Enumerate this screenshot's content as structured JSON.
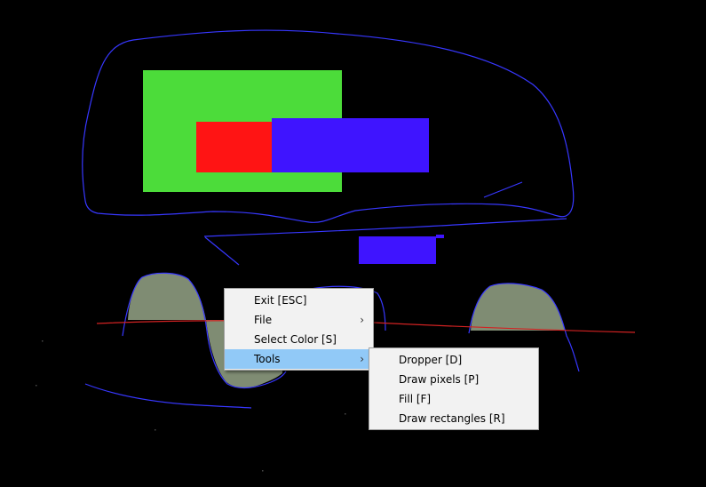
{
  "colors": {
    "background": "#000000",
    "green": "#4cdc3a",
    "red": "#ff1414",
    "blue": "#3f14ff",
    "outline": "#3737ff",
    "gray_fill": "#7f8c73",
    "red_line": "#d22222",
    "menu_bg": "#f2f2f2",
    "menu_highlight": "#91c9f7"
  },
  "context_menu": {
    "items": [
      {
        "label": "Exit [ESC]",
        "has_submenu": false
      },
      {
        "label": "File",
        "has_submenu": true,
        "arrow_icon": "chevron-right-icon"
      },
      {
        "label": "Select Color [S]",
        "has_submenu": false
      },
      {
        "label": "Tools",
        "has_submenu": true,
        "arrow_icon": "chevron-right-icon",
        "highlighted": true
      }
    ]
  },
  "tools_submenu": {
    "items": [
      {
        "label": "Dropper [D]"
      },
      {
        "label": "Draw pixels [P]"
      },
      {
        "label": "Fill [F]"
      },
      {
        "label": "Draw rectangles [R]"
      }
    ]
  }
}
